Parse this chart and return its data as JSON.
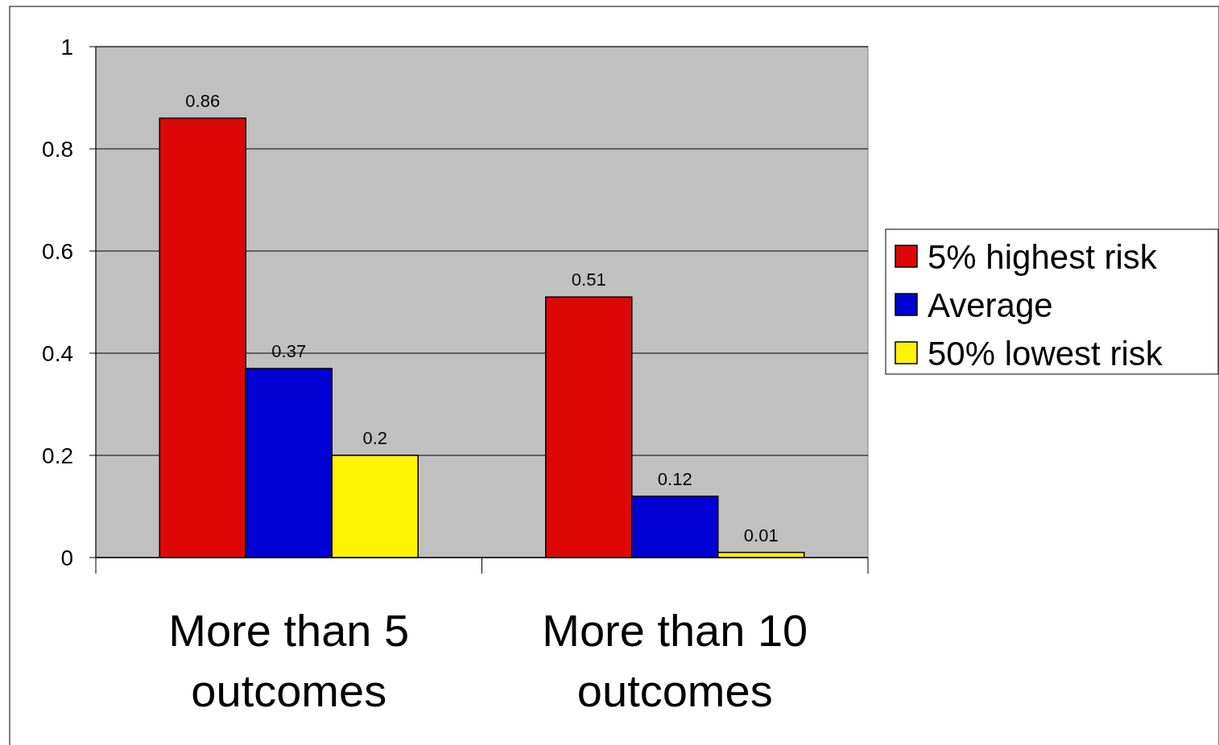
{
  "chart_data": {
    "type": "bar",
    "categories": [
      "More than 5 outcomes",
      "More than 10 outcomes"
    ],
    "series": [
      {
        "name": "5% highest risk",
        "color": "#dd0806",
        "values": [
          0.86,
          0.51
        ]
      },
      {
        "name": "Average",
        "color": "#0000d4",
        "values": [
          0.37,
          0.12
        ]
      },
      {
        "name": "50% lowest risk",
        "color": "#fcf305",
        "values": [
          0.2,
          0.01
        ]
      }
    ],
    "ylim": [
      0,
      1
    ],
    "yticks": [
      0,
      0.2,
      0.4,
      0.6,
      0.8,
      1
    ],
    "grid": "y",
    "legend": "right",
    "data_labels": true
  }
}
